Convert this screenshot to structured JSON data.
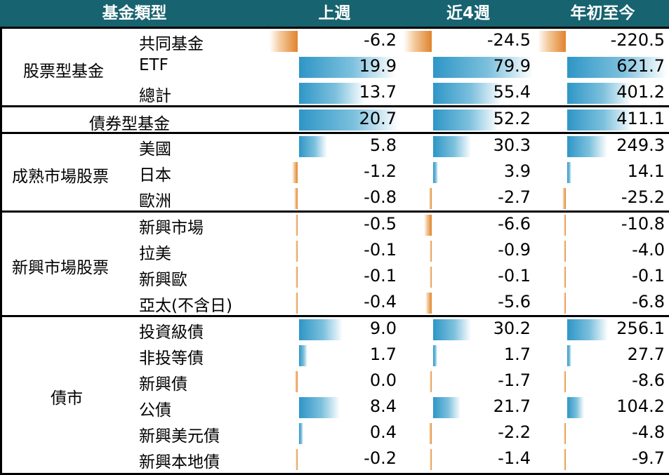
{
  "header": {
    "type_label": "基金類型",
    "col_week": "上週",
    "col_4w": "近4週",
    "col_ytd": "年初至今"
  },
  "colors": {
    "header_bg": "#17636f",
    "positive_bar": "#2e96c6",
    "negative_bar": "#e0832c"
  },
  "chart_data": {
    "type": "table",
    "columns": [
      "上週",
      "近4週",
      "年初至今"
    ],
    "groups": [
      {
        "name": "股票型基金",
        "rows": [
          {
            "label": "共同基金",
            "values": [
              -6.2,
              -24.5,
              -220.5
            ],
            "display": [
              "-6.2",
              "-24.5",
              "-220.5"
            ]
          },
          {
            "label": "ETF",
            "values": [
              19.9,
              79.9,
              621.7
            ],
            "display": [
              "19.9",
              "79.9",
              "621.7"
            ]
          },
          {
            "label": "總計",
            "values": [
              13.7,
              55.4,
              401.2
            ],
            "display": [
              "13.7",
              "55.4",
              "401.2"
            ]
          }
        ]
      },
      {
        "name": "債券型基金",
        "rows": [
          {
            "label": "",
            "values": [
              20.7,
              52.2,
              411.1
            ],
            "display": [
              "20.7",
              "52.2",
              "411.1"
            ]
          }
        ]
      },
      {
        "name": "成熟市場股票",
        "rows": [
          {
            "label": "美國",
            "values": [
              5.8,
              30.3,
              249.3
            ],
            "display": [
              "5.8",
              "30.3",
              "249.3"
            ]
          },
          {
            "label": "日本",
            "values": [
              -1.2,
              3.9,
              14.1
            ],
            "display": [
              "-1.2",
              "3.9",
              "14.1"
            ]
          },
          {
            "label": "歐洲",
            "values": [
              -0.8,
              -2.7,
              -25.2
            ],
            "display": [
              "-0.8",
              "-2.7",
              "-25.2"
            ]
          }
        ]
      },
      {
        "name": "新興市場股票",
        "rows": [
          {
            "label": "新興市場",
            "values": [
              -0.5,
              -6.6,
              -10.8
            ],
            "display": [
              "-0.5",
              "-6.6",
              "-10.8"
            ]
          },
          {
            "label": "拉美",
            "values": [
              -0.1,
              -0.9,
              -4.0
            ],
            "display": [
              "-0.1",
              "-0.9",
              "-4.0"
            ]
          },
          {
            "label": "新興歐",
            "values": [
              -0.1,
              -0.1,
              -0.1
            ],
            "display": [
              "-0.1",
              "-0.1",
              "-0.1"
            ]
          },
          {
            "label": "亞太(不含日)",
            "values": [
              -0.4,
              -5.6,
              -6.8
            ],
            "display": [
              "-0.4",
              "-5.6",
              "-6.8"
            ]
          }
        ]
      },
      {
        "name": "債市",
        "rows": [
          {
            "label": "投資級債",
            "values": [
              9.0,
              30.2,
              256.1
            ],
            "display": [
              "9.0",
              "30.2",
              "256.1"
            ]
          },
          {
            "label": "非投等債",
            "values": [
              1.7,
              1.7,
              27.7
            ],
            "display": [
              "1.7",
              "1.7",
              "27.7"
            ]
          },
          {
            "label": "新興債",
            "values": [
              0.0,
              -1.7,
              -8.6
            ],
            "display": [
              "0.0",
              "-1.7",
              "-8.6"
            ]
          },
          {
            "label": "公債",
            "values": [
              8.4,
              21.7,
              104.2
            ],
            "display": [
              "8.4",
              "21.7",
              "104.2"
            ]
          },
          {
            "label": "新興美元債",
            "values": [
              0.4,
              -2.2,
              -4.8
            ],
            "display": [
              "0.4",
              "-2.2",
              "-4.8"
            ]
          },
          {
            "label": "新興本地債",
            "values": [
              -0.2,
              -1.4,
              -9.7
            ],
            "display": [
              "-0.2",
              "-1.4",
              "-9.7"
            ]
          }
        ]
      }
    ]
  }
}
